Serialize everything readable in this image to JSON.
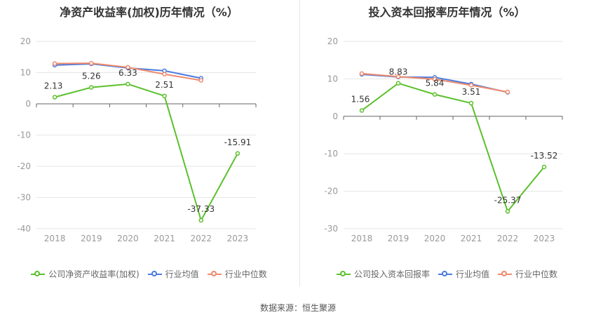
{
  "chart_data": [
    {
      "type": "line",
      "title": "净资产收益率(加权)历年情况（%）",
      "categories": [
        "2018",
        "2019",
        "2020",
        "2021",
        "2022",
        "2023"
      ],
      "ylim": [
        -40,
        20
      ],
      "yticks": [
        "20",
        "10",
        "0",
        "-10",
        "-20",
        "-30",
        "-40"
      ],
      "grid": true,
      "legend": "bottom",
      "series": [
        {
          "name": "公司净资产收益率(加权)",
          "color": "#5cc02c",
          "values": [
            2.13,
            5.26,
            6.33,
            2.51,
            -37.33,
            -15.91
          ],
          "labels": [
            "2.13",
            "5.26",
            "6.33",
            "2.51",
            "-37.33",
            "-15.91"
          ]
        },
        {
          "name": "行业均值",
          "color": "#4a7be0",
          "values": [
            12.4,
            12.8,
            11.5,
            10.6,
            8.2,
            null
          ]
        },
        {
          "name": "行业中位数",
          "color": "#f08a6c",
          "values": [
            12.9,
            13.0,
            11.7,
            9.5,
            7.5,
            null
          ]
        }
      ]
    },
    {
      "type": "line",
      "title": "投入资本回报率历年情况（%）",
      "categories": [
        "2018",
        "2019",
        "2020",
        "2021",
        "2022",
        "2023"
      ],
      "ylim": [
        -30,
        20
      ],
      "yticks": [
        "20",
        "10",
        "0",
        "-10",
        "-20",
        "-30"
      ],
      "grid": true,
      "legend": "bottom",
      "series": [
        {
          "name": "公司投入资本回报率",
          "color": "#5cc02c",
          "values": [
            1.56,
            8.83,
            5.84,
            3.51,
            -25.37,
            -13.52
          ],
          "labels": [
            "1.56",
            "8.83",
            "5.84",
            "3.51",
            "-25.37",
            "-13.52"
          ]
        },
        {
          "name": "行业均值",
          "color": "#4a7be0",
          "values": [
            11.2,
            10.5,
            10.4,
            8.6,
            6.4,
            null
          ]
        },
        {
          "name": "行业中位数",
          "color": "#f08a6c",
          "values": [
            11.4,
            10.6,
            9.9,
            8.3,
            6.5,
            null
          ]
        }
      ]
    }
  ],
  "footer": {
    "source": "数据来源：恒生聚源"
  }
}
